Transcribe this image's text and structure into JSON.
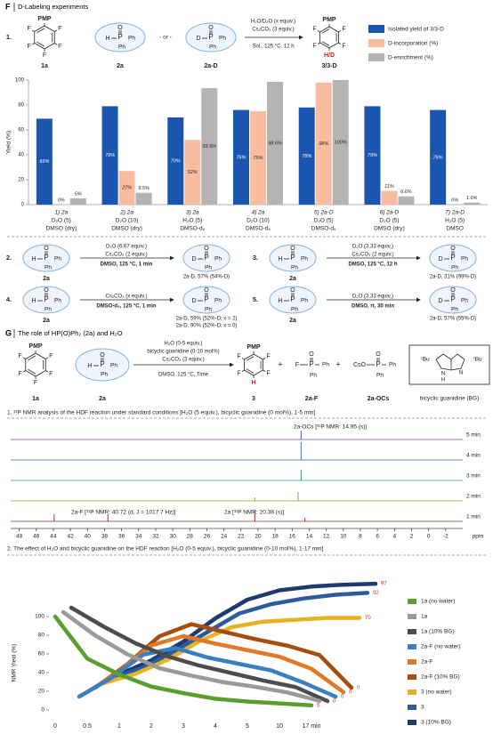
{
  "atoms": {
    "P": "P",
    "O": "O",
    "H": "H",
    "D": "D",
    "Ph": "Ph",
    "F": "F",
    "PMP": "PMP",
    "H_D": "H/D",
    "N": "N",
    "tBu": "ᵗBu",
    "CsO": "CsO"
  },
  "panel_f": {
    "label": "F",
    "title": "D-Labeling experiments",
    "scheme1": {
      "number": "1.",
      "sm": "1a",
      "reagent": "2a",
      "or": "- or -",
      "reagent2": "2a-D",
      "cond": [
        "H₂O/D₂O (x equiv.)",
        "Cs₂CO₃ (3 equiv.)"
      ],
      "cond_bottom": "Sol., 125 °C, 12 h",
      "product": "3/3-D"
    },
    "schemes": [
      {
        "number": "2.",
        "reactant": "2a",
        "cond_top": [
          "D₂O (6.67 equiv.)",
          "Cs₂CO₃ (2 equiv.)"
        ],
        "cond_bottom": "DMSO, 125 °C, 1 min",
        "product": [
          "2a-D, 57% (54%-D)"
        ]
      },
      {
        "number": "3.",
        "reactant": "2a",
        "cond_top": [
          "D₂O (3.33 equiv.)",
          "Cs₂CO₃ (2 equiv.)"
        ],
        "cond_bottom": "DMSO, 125 °C, 12 h",
        "product": [
          "2a-D, 31% (99%-D)"
        ]
      },
      {
        "number": "4.",
        "reactant": "2a",
        "cond_top": [
          "Cs₂CO₃ (x equiv.)"
        ],
        "cond_bottom": "DMSO-d₆, 125 °C, 1 min",
        "product": [
          "2a-D, 59% (52%-D; x = 2)",
          "2a-D, 90% (52%-D; x = 0)"
        ]
      },
      {
        "number": "5.",
        "reactant": "2a",
        "cond_top": [
          "D₂O (3.33 equiv.)"
        ],
        "cond_bottom": "DMSO, rt, 30 min",
        "product": [
          "2a-D, 57% (55%-D)"
        ]
      }
    ]
  },
  "panel_g": {
    "label": "G",
    "title": "The role of HP(O)Ph₂ (2a) and H₂O",
    "sm": "1a",
    "reagent": "2a",
    "cond": [
      "H₂O (0-5 equiv.)",
      "bicyclic guanidine (0-10 mol%)",
      "Cs₂CO₃ (3 equiv.)"
    ],
    "cond_bottom": "DMSO, 125 °C, Time",
    "product": "3",
    "plus": "+",
    "byproduct1": "2a-F",
    "byproduct2": "2a-OCs",
    "catalyst": "bicyclic guanidine (BG)"
  },
  "chart_data": [
    {
      "type": "bar",
      "y_label": "Yield (%)",
      "categories": [
        "1) 2a",
        "2) 2a",
        "3) 2a",
        "4) 2a",
        "5) 2a-D",
        "6) 2a-D",
        "7) 2a-D"
      ],
      "conditions": [
        [
          "D₂O (5)",
          "DMSO (dry)"
        ],
        [
          "D₂O (10)",
          "DMSO (dry)"
        ],
        [
          "H₂O (5)",
          "DMSO-d₆"
        ],
        [
          "D₂O (10)",
          "DMSO-d₆"
        ],
        [
          "D₂O (5)",
          "DMSO-d₆"
        ],
        [
          "D₂O (5)",
          "DMSO (dry)"
        ],
        [
          "H₂O (5)",
          "DMSO"
        ]
      ],
      "series": [
        {
          "name": "Isolated yield of 3/3-D",
          "color": "#1a55b0",
          "values": [
            69,
            79,
            70,
            76,
            78,
            79,
            76
          ],
          "value_labels": [
            "69%",
            "79%",
            "70%",
            "76%",
            "78%",
            "79%",
            "76%"
          ]
        },
        {
          "name": "D-incorporation (%)",
          "color": "#f8bda0",
          "values": [
            0,
            27,
            52,
            75,
            98,
            11,
            0
          ],
          "value_labels": [
            "0%",
            "27%",
            "52%",
            "75%",
            "98%",
            "11%",
            "0%"
          ]
        },
        {
          "name": "D-enrichment (%)",
          "color": "#b4b4b4",
          "values": [
            5,
            9.5,
            93.5,
            98.6,
            100,
            6.6,
            1.6
          ],
          "value_labels": [
            "5%",
            "9.5%",
            "93.5%",
            "98.6%",
            "100%",
            "6.6%",
            "1.6%"
          ]
        }
      ],
      "ylim": [
        0,
        100
      ],
      "yticks": [
        0,
        20,
        40,
        60,
        80,
        100
      ],
      "legend": "top-right"
    },
    {
      "type": "spectrum",
      "title": "1. ³¹P NMR analysis of the HDF reaction under standard conditions [H₂O (5 equiv.), bicyclic guanidine (0 mol%), 1-5 min]",
      "x_label": "ppm",
      "xlim": [
        49,
        -4
      ],
      "xticks": [
        48,
        46,
        44,
        42,
        40,
        38,
        36,
        34,
        32,
        30,
        28,
        26,
        24,
        22,
        20,
        18,
        16,
        14,
        12,
        10,
        8,
        6,
        4,
        2,
        0,
        -2
      ],
      "annotations": [
        "2a-OCs [³¹P NMR: 14.95 (s)]",
        "2a-F [³¹P NMR: 40.72 (d, J = 1017.7 Hz)]",
        "2a [³¹P NMR: 20.38 (s)]"
      ],
      "series": [
        {
          "name": "5 min",
          "color": "#7b3f9e",
          "peaks": [
            14.95
          ],
          "intensities": [
            0.5
          ]
        },
        {
          "name": "4 min",
          "color": "#3d6fa8",
          "peaks": [
            14.95
          ],
          "intensities": [
            1.0
          ]
        },
        {
          "name": "3 min",
          "color": "#3a9a8a",
          "peaks": [
            14.95
          ],
          "intensities": [
            0.6
          ]
        },
        {
          "name": "2 min",
          "color": "#8aa32e",
          "peaks": [
            15.3,
            20.38
          ],
          "intensities": [
            0.5,
            0.2
          ]
        },
        {
          "name": "1 min",
          "color": "#9e2a2a",
          "peaks": [
            43.9,
            37.6,
            20.38,
            14.5
          ],
          "intensities": [
            0.4,
            0.4,
            0.6,
            0.2
          ]
        }
      ]
    },
    {
      "type": "line",
      "title": "2. The effect of H₂O and bicyclic guanidine on the HDF reaction [H₂O (0-5 equiv.), bicyclic guanidine (0-10 mol%), 1-17 min]",
      "y_label": "NMR Yield (%)",
      "categories": [
        "0",
        "0.5",
        "1",
        "2",
        "3",
        "4",
        "5",
        "10",
        "17 min"
      ],
      "ylim": [
        0,
        100
      ],
      "yticks": [
        0,
        20,
        40,
        60,
        80,
        100
      ],
      "series": [
        {
          "name": "1a (no water)",
          "color": "#5a9e2f",
          "values": [
            100,
            55,
            38,
            25,
            18,
            12,
            9,
            7,
            5
          ]
        },
        {
          "name": "1a",
          "color": "#9a9a9a",
          "values": [
            100,
            75,
            55,
            40,
            32,
            25,
            20,
            14,
            5
          ]
        },
        {
          "name": "1a (10% BG)",
          "color": "#4d4d4d",
          "values": [
            100,
            80,
            62,
            48,
            38,
            30,
            22,
            15,
            0
          ]
        },
        {
          "name": "2a-F (no water)",
          "color": "#3a7fc0",
          "values": [
            0,
            20,
            45,
            52,
            42,
            35,
            28,
            15,
            0
          ]
        },
        {
          "name": "2a-F",
          "color": "#e07a2a",
          "values": [
            0,
            22,
            50,
            60,
            52,
            45,
            38,
            25,
            0
          ]
        },
        {
          "name": "2a-F (10% BG)",
          "color": "#a64d12",
          "values": [
            0,
            25,
            55,
            68,
            60,
            52,
            45,
            35,
            0
          ]
        },
        {
          "name": "3 (no water)",
          "color": "#e6b422",
          "values": [
            0,
            10,
            25,
            45,
            60,
            66,
            68,
            70,
            70
          ]
        },
        {
          "name": "3",
          "color": "#2e5b9e",
          "values": [
            0,
            12,
            30,
            50,
            70,
            80,
            86,
            90,
            92
          ]
        },
        {
          "name": "3 (10% BG)",
          "color": "#1f3a6e",
          "values": [
            0,
            15,
            35,
            60,
            80,
            90,
            94,
            96,
            97
          ]
        }
      ]
    }
  ]
}
